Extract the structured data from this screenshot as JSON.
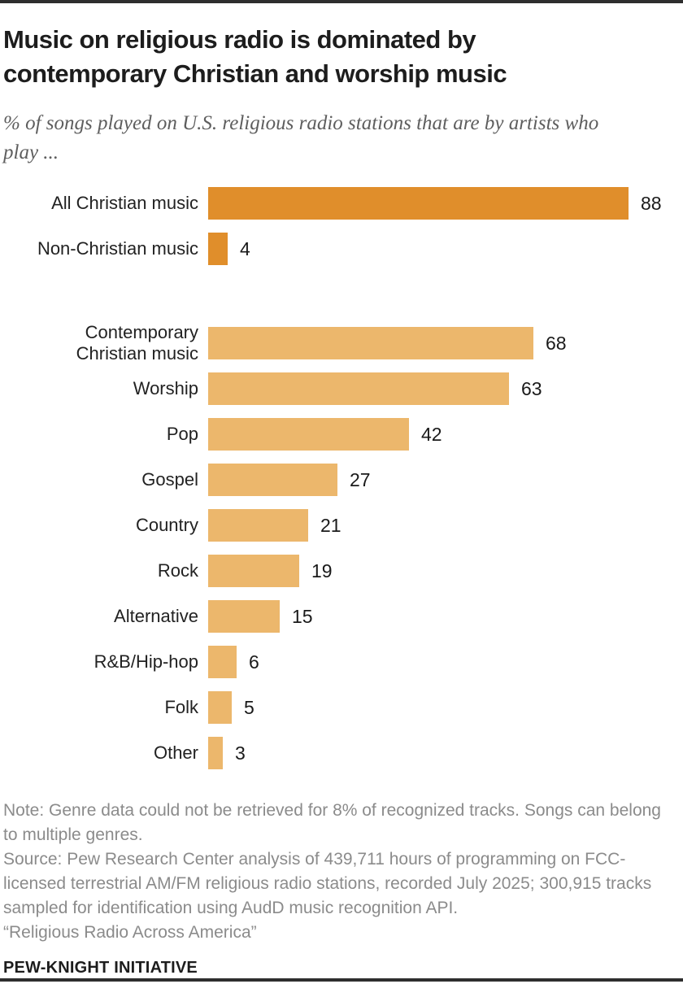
{
  "header": {
    "title": "Music on religious radio is dominated by contemporary Christian and worship music",
    "subtitle": "% of songs played on U.S. religious radio stations that are by artists who play ..."
  },
  "chart_data": {
    "type": "bar",
    "orientation": "horizontal",
    "value_unit": "percent",
    "xlim": [
      0,
      100
    ],
    "grid": false,
    "legend": "none",
    "groups": [
      {
        "name": "overall",
        "bar_color": "#e08e2b",
        "categories": [
          "All Christian music",
          "Non-Christian music"
        ],
        "values": [
          88,
          4
        ],
        "bars": [
          {
            "label": "All Christian music",
            "value": 88
          },
          {
            "label": "Non-Christian music",
            "value": 4
          }
        ]
      },
      {
        "name": "genres",
        "bar_color": "#ecb76c",
        "categories": [
          "Contemporary Christian music",
          "Worship",
          "Pop",
          "Gospel",
          "Country",
          "Rock",
          "Alternative",
          "R&B/Hip-hop",
          "Folk",
          "Other"
        ],
        "values": [
          68,
          63,
          42,
          27,
          21,
          19,
          15,
          6,
          5,
          3
        ],
        "bars": [
          {
            "label": "Contemporary\nChristian music",
            "value": 68
          },
          {
            "label": "Worship",
            "value": 63
          },
          {
            "label": "Pop",
            "value": 42
          },
          {
            "label": "Gospel",
            "value": 27
          },
          {
            "label": "Country",
            "value": 21
          },
          {
            "label": "Rock",
            "value": 19
          },
          {
            "label": "Alternative",
            "value": 15
          },
          {
            "label": "R&B/Hip-hop",
            "value": 6
          },
          {
            "label": "Folk",
            "value": 5
          },
          {
            "label": "Other",
            "value": 3
          }
        ]
      }
    ]
  },
  "footer": {
    "note": "Note: Genre data could not be retrieved for 8% of recognized tracks. Songs can belong to multiple genres.",
    "source": "Source: Pew Research Center analysis of 439,711 hours of programming on FCC-licensed terrestrial AM/FM religious radio stations, recorded July 2025; 300,915 tracks sampled for identification using AudD music recognition API.",
    "report": "“Religious Radio Across America”",
    "brand": "PEW-KNIGHT INITIATIVE"
  },
  "colors": {
    "dark_orange": "#e08e2b",
    "light_orange": "#ecb76c",
    "rule": "#2e2e2e",
    "note_gray": "#8b8b8b"
  }
}
